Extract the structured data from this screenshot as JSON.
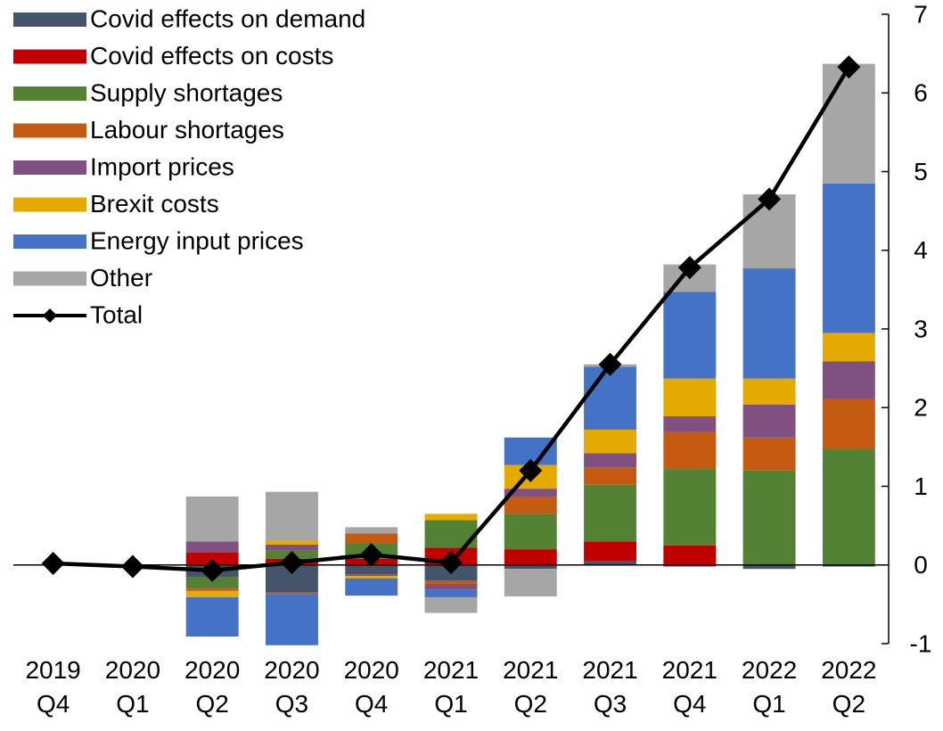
{
  "chart_data": {
    "type": "bar",
    "stacked": true,
    "categories": [
      "2019 Q4",
      "2020 Q1",
      "2020 Q2",
      "2020 Q3",
      "2020 Q4",
      "2021 Q1",
      "2021 Q2",
      "2021 Q3",
      "2021 Q4",
      "2022 Q1",
      "2022 Q2"
    ],
    "series": [
      {
        "name": "Covid effects on demand",
        "color": "#44546a",
        "values": [
          0,
          0,
          -0.15,
          -0.35,
          -0.12,
          -0.2,
          -0.05,
          0.05,
          -0.02,
          -0.05,
          -0.02
        ]
      },
      {
        "name": "Covid effects on costs",
        "color": "#c00000",
        "values": [
          0,
          0,
          0.16,
          0.08,
          0.08,
          0.22,
          0.2,
          0.25,
          0.25,
          0,
          0
        ]
      },
      {
        "name": "Supply shortages",
        "color": "#548235",
        "values": [
          0,
          0,
          -0.15,
          0.1,
          0.2,
          0.35,
          0.45,
          0.72,
          0.97,
          1.2,
          1.47
        ]
      },
      {
        "name": "Labour shortages",
        "color": "#c55a11",
        "values": [
          0,
          0,
          -0.03,
          -0.02,
          0.12,
          -0.04,
          0.22,
          0.22,
          0.47,
          0.42,
          0.64
        ]
      },
      {
        "name": "Import prices",
        "color": "#7f5080",
        "values": [
          0,
          0,
          0.14,
          0.08,
          -0.02,
          -0.07,
          0.1,
          0.18,
          0.2,
          0.42,
          0.48
        ]
      },
      {
        "name": "Brexit costs",
        "color": "#e4aa00",
        "values": [
          0,
          0,
          -0.08,
          0.05,
          -0.03,
          0.08,
          0.3,
          0.3,
          0.48,
          0.33,
          0.36
        ]
      },
      {
        "name": "Energy input prices",
        "color": "#4472c4",
        "values": [
          0,
          0,
          -0.5,
          -0.65,
          -0.22,
          -0.1,
          0.35,
          0.8,
          1.1,
          1.4,
          1.9
        ]
      },
      {
        "name": "Other",
        "color": "#a6a6a6",
        "values": [
          0,
          0,
          0.57,
          0.62,
          0.08,
          -0.2,
          -0.35,
          0.03,
          0.35,
          0.94,
          1.52
        ]
      },
      {
        "name": "Total",
        "color": "#000000",
        "type": "line",
        "values": [
          0.02,
          -0.02,
          -0.07,
          0.03,
          0.13,
          0.03,
          1.2,
          2.55,
          3.78,
          4.65,
          6.33
        ]
      }
    ],
    "ylim": [
      -1,
      7
    ],
    "yticks": [
      -1,
      0,
      1,
      2,
      3,
      4,
      5,
      6,
      7
    ],
    "y_axis_side": "right",
    "legend": "upper left"
  }
}
